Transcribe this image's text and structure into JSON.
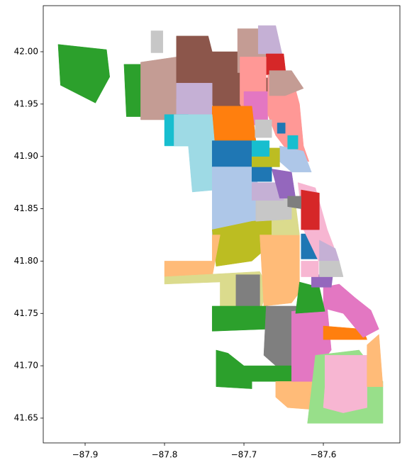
{
  "chart_data": {
    "type": "map",
    "xlim": [
      -87.9527,
      -87.5036
    ],
    "ylim": [
      41.6263,
      42.044
    ],
    "xticks": [
      {
        "value": -87.9,
        "label": "−87.9"
      },
      {
        "value": -87.8,
        "label": "−87.8"
      },
      {
        "value": -87.7,
        "label": "−87.7"
      },
      {
        "value": -87.6,
        "label": "−87.6"
      }
    ],
    "yticks": [
      41.65,
      {
        "value": 41.7,
        "label": "41.70"
      },
      41.75,
      {
        "value": 41.8,
        "label": "41.80"
      },
      41.85,
      {
        "value": 41.9,
        "label": "41.90"
      },
      41.95,
      {
        "value": 42.0,
        "label": "42.00"
      }
    ],
    "regions": [
      {
        "color": "#2ca02c",
        "lon": [
          -87.934,
          -87.873,
          -87.869,
          -87.887,
          -87.931
        ],
        "lat": [
          42.007,
          42.002,
          41.976,
          41.951,
          41.968
        ]
      },
      {
        "color": "#2ca02c",
        "lon": [
          -87.851,
          -87.83,
          -87.829,
          -87.848
        ],
        "lat": [
          41.988,
          41.988,
          41.938,
          41.938
        ]
      },
      {
        "color": "#c7c7c7",
        "lon": [
          -87.817,
          -87.802,
          -87.802,
          -87.817
        ],
        "lat": [
          42.02,
          42.02,
          41.999,
          41.999
        ]
      },
      {
        "color": "#c49c94",
        "lon": [
          -87.83,
          -87.785,
          -87.785,
          -87.75,
          -87.75,
          -87.83
        ],
        "lat": [
          41.99,
          41.995,
          41.95,
          41.95,
          41.935,
          41.935
        ]
      },
      {
        "color": "#8c564b",
        "lon": [
          -87.785,
          -87.745,
          -87.74,
          -87.69,
          -87.686,
          -87.665,
          -87.665,
          -87.68,
          -87.72,
          -87.735,
          -87.74,
          -87.785
        ],
        "lat": [
          42.015,
          42.015,
          42.0,
          42.0,
          41.975,
          41.975,
          41.945,
          41.945,
          41.94,
          41.94,
          41.95,
          41.955
        ]
      },
      {
        "color": "#c5b0d5",
        "lon": [
          -87.785,
          -87.74,
          -87.74,
          -87.785
        ],
        "lat": [
          41.97,
          41.97,
          41.935,
          41.935
        ]
      },
      {
        "color": "#c49c94",
        "lon": [
          -87.708,
          -87.67,
          -87.668,
          -87.708
        ],
        "lat": [
          42.022,
          42.022,
          41.98,
          41.98
        ]
      },
      {
        "color": "#c5b0d5",
        "lon": [
          -87.682,
          -87.66,
          -87.652,
          -87.682
        ],
        "lat": [
          42.025,
          42.025,
          41.998,
          41.998
        ]
      },
      {
        "color": "#d62728",
        "lon": [
          -87.672,
          -87.65,
          -87.647,
          -87.672
        ],
        "lat": [
          41.998,
          41.998,
          41.978,
          41.978
        ]
      },
      {
        "color": "#ff9896",
        "lon": [
          -87.705,
          -87.672,
          -87.672,
          -87.69,
          -87.705
        ],
        "lat": [
          41.995,
          41.995,
          41.93,
          41.93,
          41.95
        ]
      },
      {
        "color": "#e377c2",
        "lon": [
          -87.7,
          -87.67,
          -87.67,
          -87.7
        ],
        "lat": [
          41.962,
          41.962,
          41.93,
          41.93
        ]
      },
      {
        "color": "#ff9896",
        "lon": [
          -87.67,
          -87.64,
          -87.63,
          -87.625,
          -87.618,
          -87.64,
          -87.66,
          -87.67
        ],
        "lat": [
          41.978,
          41.978,
          41.95,
          41.91,
          41.895,
          41.9,
          41.92,
          41.94
        ]
      },
      {
        "color": "#c49c94",
        "lon": [
          -87.668,
          -87.64,
          -87.625,
          -87.648,
          -87.668
        ],
        "lat": [
          41.982,
          41.982,
          41.965,
          41.958,
          41.958
        ]
      },
      {
        "color": "#ff7f0e",
        "lon": [
          -87.74,
          -87.69,
          -87.685,
          -87.74
        ],
        "lat": [
          41.948,
          41.948,
          41.915,
          41.915
        ]
      },
      {
        "color": "#17becf",
        "lon": [
          -87.8,
          -87.77,
          -87.77,
          -87.8
        ],
        "lat": [
          41.94,
          41.94,
          41.91,
          41.91
        ]
      },
      {
        "color": "#9edae5",
        "lon": [
          -87.788,
          -87.74,
          -87.735,
          -87.735,
          -87.765,
          -87.77,
          -87.788
        ],
        "lat": [
          41.94,
          41.94,
          41.895,
          41.868,
          41.866,
          41.91,
          41.91
        ]
      },
      {
        "color": "#1f77b4",
        "lon": [
          -87.74,
          -87.69,
          -87.69,
          -87.74
        ],
        "lat": [
          41.915,
          41.915,
          41.89,
          41.89
        ]
      },
      {
        "color": "#aec7e8",
        "lon": [
          -87.74,
          -87.686,
          -87.68,
          -87.68,
          -87.7,
          -87.73,
          -87.74
        ],
        "lat": [
          41.89,
          41.89,
          41.86,
          41.83,
          41.82,
          41.81,
          41.82
        ]
      },
      {
        "color": "#bcbd22",
        "lon": [
          -87.74,
          -87.69,
          -87.66,
          -87.66,
          -87.69,
          -87.735
        ],
        "lat": [
          41.83,
          41.838,
          41.84,
          41.82,
          41.8,
          41.795
        ]
      },
      {
        "color": "#ffbb78",
        "lon": [
          -87.8,
          -87.74,
          -87.74,
          -87.73,
          -87.74,
          -87.8
        ],
        "lat": [
          41.8,
          41.8,
          41.825,
          41.825,
          41.785,
          41.785
        ]
      },
      {
        "color": "#dbdb8d",
        "lon": [
          -87.8,
          -87.68,
          -87.67,
          -87.68,
          -87.73,
          -87.73,
          -87.8
        ],
        "lat": [
          41.785,
          41.79,
          41.775,
          41.75,
          41.752,
          41.78,
          41.778
        ]
      },
      {
        "color": "#7f7f7f",
        "lon": [
          -87.71,
          -87.68,
          -87.68,
          -87.71
        ],
        "lat": [
          41.787,
          41.787,
          41.757,
          41.757
        ]
      },
      {
        "color": "#ffbb78",
        "lon": [
          -87.68,
          -87.63,
          -87.63,
          -87.64,
          -87.675
        ],
        "lat": [
          41.825,
          41.825,
          41.77,
          41.76,
          41.757
        ]
      },
      {
        "color": "#2ca02c",
        "lon": [
          -87.74,
          -87.67,
          -87.67,
          -87.74
        ],
        "lat": [
          41.757,
          41.757,
          41.735,
          41.733
        ]
      },
      {
        "color": "#7f7f7f",
        "lon": [
          -87.672,
          -87.625,
          -87.62,
          -87.66,
          -87.675
        ],
        "lat": [
          41.757,
          41.757,
          41.7,
          41.7,
          41.71
        ]
      },
      {
        "color": "#2ca02c",
        "lon": [
          -87.735,
          -87.72,
          -87.7,
          -87.64,
          -87.64,
          -87.69,
          -87.69,
          -87.735
        ],
        "lat": [
          41.715,
          41.712,
          41.7,
          41.7,
          41.685,
          41.685,
          41.678,
          41.68
        ]
      },
      {
        "color": "#ffbb78",
        "lon": [
          -87.66,
          -87.61,
          -87.6,
          -87.61,
          -87.645,
          -87.66
        ],
        "lat": [
          41.685,
          41.685,
          41.665,
          41.658,
          41.66,
          41.67
        ]
      },
      {
        "color": "#e377c2",
        "lon": [
          -87.64,
          -87.595,
          -87.59,
          -87.6,
          -87.608,
          -87.64
        ],
        "lat": [
          41.752,
          41.755,
          41.715,
          41.705,
          41.685,
          41.685
        ]
      },
      {
        "color": "#98df8a",
        "lon": [
          -87.61,
          -87.555,
          -87.525,
          -87.525,
          -87.62
        ],
        "lat": [
          41.71,
          41.715,
          41.685,
          41.645,
          41.645
        ]
      },
      {
        "color": "#f7b6d2",
        "lon": [
          -87.598,
          -87.545,
          -87.545,
          -87.575,
          -87.6,
          -87.598
        ],
        "lat": [
          41.71,
          41.71,
          41.66,
          41.655,
          41.66,
          41.68
        ]
      },
      {
        "color": "#ffbb78",
        "lon": [
          -87.545,
          -87.53,
          -87.525,
          -87.545
        ],
        "lat": [
          41.72,
          41.73,
          41.68,
          41.68
        ]
      },
      {
        "color": "#ff7f0e",
        "lon": [
          -87.6,
          -87.55,
          -87.545,
          -87.6
        ],
        "lat": [
          41.738,
          41.735,
          41.725,
          41.725
        ]
      },
      {
        "color": "#e377c2",
        "lon": [
          -87.6,
          -87.58,
          -87.56,
          -87.54,
          -87.53,
          -87.55,
          -87.575,
          -87.6
        ],
        "lat": [
          41.775,
          41.778,
          41.765,
          41.753,
          41.735,
          41.727,
          41.75,
          41.755
        ]
      },
      {
        "color": "#2ca02c",
        "lon": [
          -87.63,
          -87.605,
          -87.598,
          -87.635
        ],
        "lat": [
          41.78,
          41.775,
          41.752,
          41.75
        ]
      },
      {
        "color": "#9467bd",
        "lon": [
          -87.615,
          -87.588,
          -87.59,
          -87.615
        ],
        "lat": [
          41.787,
          41.787,
          41.775,
          41.775
        ]
      },
      {
        "color": "#f7b6d2",
        "lon": [
          -87.628,
          -87.606,
          -87.606,
          -87.628
        ],
        "lat": [
          41.8,
          41.8,
          41.785,
          41.785
        ]
      },
      {
        "color": "#1f77b4",
        "lon": [
          -87.628,
          -87.606,
          -87.606,
          -87.628
        ],
        "lat": [
          41.826,
          41.826,
          41.802,
          41.802
        ]
      },
      {
        "color": "#dbdb8d",
        "lon": [
          -87.665,
          -87.635,
          -87.63,
          -87.665
        ],
        "lat": [
          41.85,
          41.855,
          41.825,
          41.825
        ]
      },
      {
        "color": "#c7c7c7",
        "lon": [
          -87.685,
          -87.64,
          -87.64,
          -87.685
        ],
        "lat": [
          41.86,
          41.862,
          41.84,
          41.838
        ]
      },
      {
        "color": "#c5b0d5",
        "lon": [
          -87.69,
          -87.65,
          -87.65,
          -87.69
        ],
        "lat": [
          41.875,
          41.875,
          41.858,
          41.858
        ]
      },
      {
        "color": "#9467bd",
        "lon": [
          -87.665,
          -87.64,
          -87.635,
          -87.655
        ],
        "lat": [
          41.888,
          41.885,
          41.86,
          41.86
        ]
      },
      {
        "color": "#1f77b4",
        "lon": [
          -87.69,
          -87.665,
          -87.665,
          -87.69
        ],
        "lat": [
          41.89,
          41.89,
          41.876,
          41.876
        ]
      },
      {
        "color": "#aec7e8",
        "lon": [
          -87.655,
          -87.625,
          -87.615,
          -87.64,
          -87.655
        ],
        "lat": [
          41.91,
          41.905,
          41.885,
          41.885,
          41.895
        ]
      },
      {
        "color": "#bcbd22",
        "lon": [
          -87.69,
          -87.655,
          -87.655,
          -87.69
        ],
        "lat": [
          41.908,
          41.908,
          41.89,
          41.89
        ]
      },
      {
        "color": "#17becf",
        "lon": [
          -87.69,
          -87.668,
          -87.668,
          -87.69
        ],
        "lat": [
          41.915,
          41.915,
          41.9,
          41.9
        ]
      },
      {
        "color": "#f7b6d2",
        "lon": [
          -87.632,
          -87.61,
          -87.595,
          -87.585,
          -87.606,
          -87.625
        ],
        "lat": [
          41.875,
          41.87,
          41.83,
          41.81,
          41.8,
          41.83
        ]
      },
      {
        "color": "#d62728",
        "lon": [
          -87.628,
          -87.605,
          -87.605,
          -87.628
        ],
        "lat": [
          41.868,
          41.865,
          41.83,
          41.83
        ]
      },
      {
        "color": "#c5b0d5",
        "lon": [
          -87.605,
          -87.585,
          -87.58,
          -87.605
        ],
        "lat": [
          41.82,
          41.812,
          41.8,
          41.8
        ]
      },
      {
        "color": "#c7c7c7",
        "lon": [
          -87.605,
          -87.58,
          -87.575,
          -87.605
        ],
        "lat": [
          41.8,
          41.8,
          41.785,
          41.785
        ]
      },
      {
        "color": "#7f7f7f",
        "lon": [
          -87.645,
          -87.628,
          -87.628,
          -87.645
        ],
        "lat": [
          41.862,
          41.862,
          41.85,
          41.852
        ]
      },
      {
        "color": "#1f77b4",
        "lon": [
          -87.658,
          -87.648,
          -87.648,
          -87.658
        ],
        "lat": [
          41.932,
          41.932,
          41.922,
          41.922
        ]
      },
      {
        "color": "#17becf",
        "lon": [
          -87.645,
          -87.632,
          -87.632,
          -87.645
        ],
        "lat": [
          41.92,
          41.92,
          41.907,
          41.907
        ]
      },
      {
        "color": "#c7c7c7",
        "lon": [
          -87.686,
          -87.665,
          -87.665,
          -87.686
        ],
        "lat": [
          41.935,
          41.935,
          41.918,
          41.918
        ]
      }
    ]
  }
}
